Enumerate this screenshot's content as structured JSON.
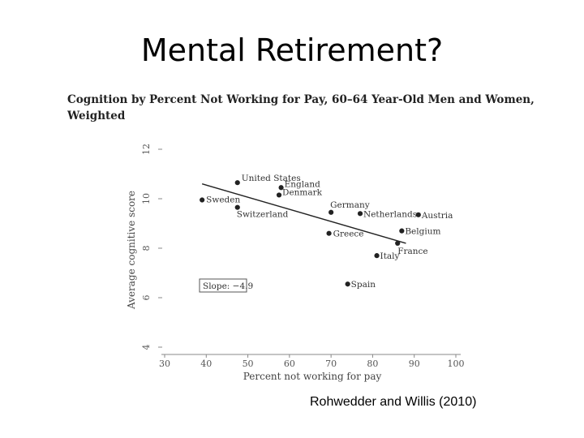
{
  "slide": {
    "title": "Mental Retirement?",
    "source": "Rohwedder and Willis (2010)"
  },
  "chart_data": {
    "type": "scatter",
    "title": "Cognition by Percent Not Working for Pay, 60–64 Year-Old Men and Women, Weighted",
    "xlabel": "Percent not working for pay",
    "ylabel": "Average cognitive score",
    "xlim": [
      30,
      100
    ],
    "ylim": [
      4,
      12
    ],
    "xticks": [
      "30",
      "40",
      "50",
      "60",
      "70",
      "80",
      "90",
      "100"
    ],
    "yticks": [
      "4",
      "6",
      "8",
      "10",
      "12"
    ],
    "points": [
      {
        "label": "United States",
        "x": 47.5,
        "y": 10.65
      },
      {
        "label": "England",
        "x": 58,
        "y": 10.45
      },
      {
        "label": "Denmark",
        "x": 57.5,
        "y": 10.15
      },
      {
        "label": "Sweden",
        "x": 39,
        "y": 9.95
      },
      {
        "label": "Switzerland",
        "x": 47.5,
        "y": 9.65
      },
      {
        "label": "Germany",
        "x": 70,
        "y": 9.45
      },
      {
        "label": "Netherlands",
        "x": 77,
        "y": 9.4
      },
      {
        "label": "Austria",
        "x": 91,
        "y": 9.35
      },
      {
        "label": "Belgium",
        "x": 87,
        "y": 8.7
      },
      {
        "label": "Greece",
        "x": 69.5,
        "y": 8.6
      },
      {
        "label": "France",
        "x": 86,
        "y": 8.2
      },
      {
        "label": "Italy",
        "x": 81,
        "y": 7.7
      },
      {
        "label": "Spain",
        "x": 74,
        "y": 6.55
      }
    ],
    "fit_line": {
      "x": [
        39,
        88
      ],
      "y": [
        10.6,
        8.2
      ]
    },
    "annotation": "Slope: −4.9",
    "grid": false
  }
}
